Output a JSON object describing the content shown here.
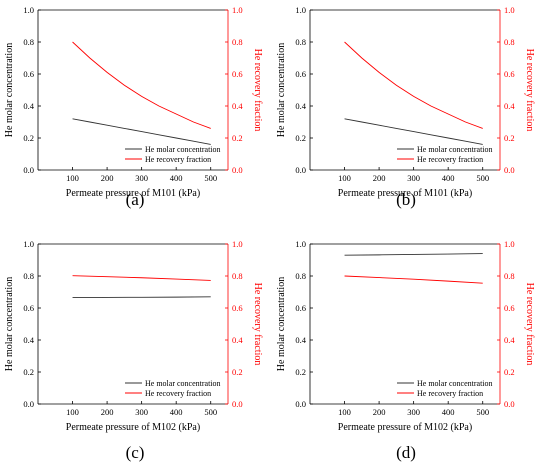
{
  "colors": {
    "black_series": "#333333",
    "red_series": "#ff0000",
    "axis": "#000000"
  },
  "chart_data": [
    {
      "type": "line",
      "panel_label": "(a)",
      "xlabel": "Permeate pressure of M101 (kPa)",
      "ylabel": "He molar concentration",
      "ylabel_right": "He recovery fraction",
      "xlim": [
        0,
        550
      ],
      "ylim": [
        0,
        1.0
      ],
      "ylim_right": [
        0,
        1.0
      ],
      "x_ticks": [
        100,
        200,
        300,
        400,
        500
      ],
      "y_ticks": [
        "0.0",
        "0.2",
        "0.4",
        "0.6",
        "0.8",
        "1.0"
      ],
      "y_ticks_right": [
        "0.0",
        "0.2",
        "0.4",
        "0.6",
        "0.8",
        "1.0"
      ],
      "legend_position": "bottom-right",
      "x": [
        100,
        150,
        200,
        250,
        300,
        350,
        400,
        450,
        500
      ],
      "series": [
        {
          "name": "He molar concentration",
          "color": "#333333",
          "axis": "left",
          "values": [
            0.32,
            0.3,
            0.28,
            0.26,
            0.24,
            0.22,
            0.2,
            0.18,
            0.16
          ]
        },
        {
          "name": "He recovery fraction",
          "color": "#ff0000",
          "axis": "right",
          "values": [
            0.8,
            0.7,
            0.61,
            0.53,
            0.46,
            0.4,
            0.35,
            0.3,
            0.26
          ]
        }
      ]
    },
    {
      "type": "line",
      "panel_label": "(b)",
      "xlabel": "Permeate pressure of M101 (kPa)",
      "ylabel": "He molar concentration",
      "ylabel_right": "He recovery fraction",
      "xlim": [
        0,
        550
      ],
      "ylim": [
        0,
        1.0
      ],
      "ylim_right": [
        0,
        1.0
      ],
      "x_ticks": [
        100,
        200,
        300,
        400,
        500
      ],
      "y_ticks": [
        "0.0",
        "0.2",
        "0.4",
        "0.6",
        "0.8",
        "1.0"
      ],
      "y_ticks_right": [
        "0.0",
        "0.2",
        "0.4",
        "0.6",
        "0.8",
        "1.0"
      ],
      "legend_position": "bottom-right",
      "x": [
        100,
        150,
        200,
        250,
        300,
        350,
        400,
        450,
        500
      ],
      "series": [
        {
          "name": "He molar concentration",
          "color": "#333333",
          "axis": "left",
          "values": [
            0.32,
            0.3,
            0.28,
            0.26,
            0.24,
            0.22,
            0.2,
            0.18,
            0.16
          ]
        },
        {
          "name": "He recovery fraction",
          "color": "#ff0000",
          "axis": "right",
          "values": [
            0.8,
            0.7,
            0.61,
            0.53,
            0.46,
            0.4,
            0.35,
            0.3,
            0.26
          ]
        }
      ]
    },
    {
      "type": "line",
      "panel_label": "(c)",
      "xlabel": "Permeate pressure of M102 (kPa)",
      "ylabel": "He molar concentration",
      "ylabel_right": "He recovery fraction",
      "xlim": [
        0,
        550
      ],
      "ylim": [
        0,
        1.0
      ],
      "ylim_right": [
        0,
        1.0
      ],
      "x_ticks": [
        100,
        200,
        300,
        400,
        500
      ],
      "y_ticks": [
        "0.0",
        "0.2",
        "0.4",
        "0.6",
        "0.8",
        "1.0"
      ],
      "y_ticks_right": [
        "0.0",
        "0.2",
        "0.4",
        "0.6",
        "0.8",
        "1.0"
      ],
      "legend_position": "bottom-right",
      "x": [
        100,
        200,
        300,
        400,
        500
      ],
      "series": [
        {
          "name": "He molar concentration",
          "color": "#333333",
          "axis": "left",
          "values": [
            0.665,
            0.666,
            0.667,
            0.668,
            0.67
          ]
        },
        {
          "name": "He recovery fraction",
          "color": "#ff0000",
          "axis": "right",
          "values": [
            0.802,
            0.796,
            0.789,
            0.781,
            0.772
          ]
        }
      ]
    },
    {
      "type": "line",
      "panel_label": "(d)",
      "xlabel": "Permeate pressure of M102 (kPa)",
      "ylabel": "He molar concentration",
      "ylabel_right": "He recovery fraction",
      "xlim": [
        0,
        550
      ],
      "ylim": [
        0,
        1.0
      ],
      "ylim_right": [
        0,
        1.0
      ],
      "x_ticks": [
        100,
        200,
        300,
        400,
        500
      ],
      "y_ticks": [
        "0.0",
        "0.2",
        "0.4",
        "0.6",
        "0.8",
        "1.0"
      ],
      "y_ticks_right": [
        "0.0",
        "0.2",
        "0.4",
        "0.6",
        "0.8",
        "1.0"
      ],
      "legend_position": "bottom-right",
      "x": [
        100,
        200,
        300,
        400,
        500
      ],
      "series": [
        {
          "name": "He molar concentration",
          "color": "#333333",
          "axis": "left",
          "values": [
            0.93,
            0.932,
            0.935,
            0.937,
            0.94
          ]
        },
        {
          "name": "He recovery fraction",
          "color": "#ff0000",
          "axis": "right",
          "values": [
            0.8,
            0.79,
            0.78,
            0.768,
            0.755
          ]
        }
      ]
    }
  ]
}
